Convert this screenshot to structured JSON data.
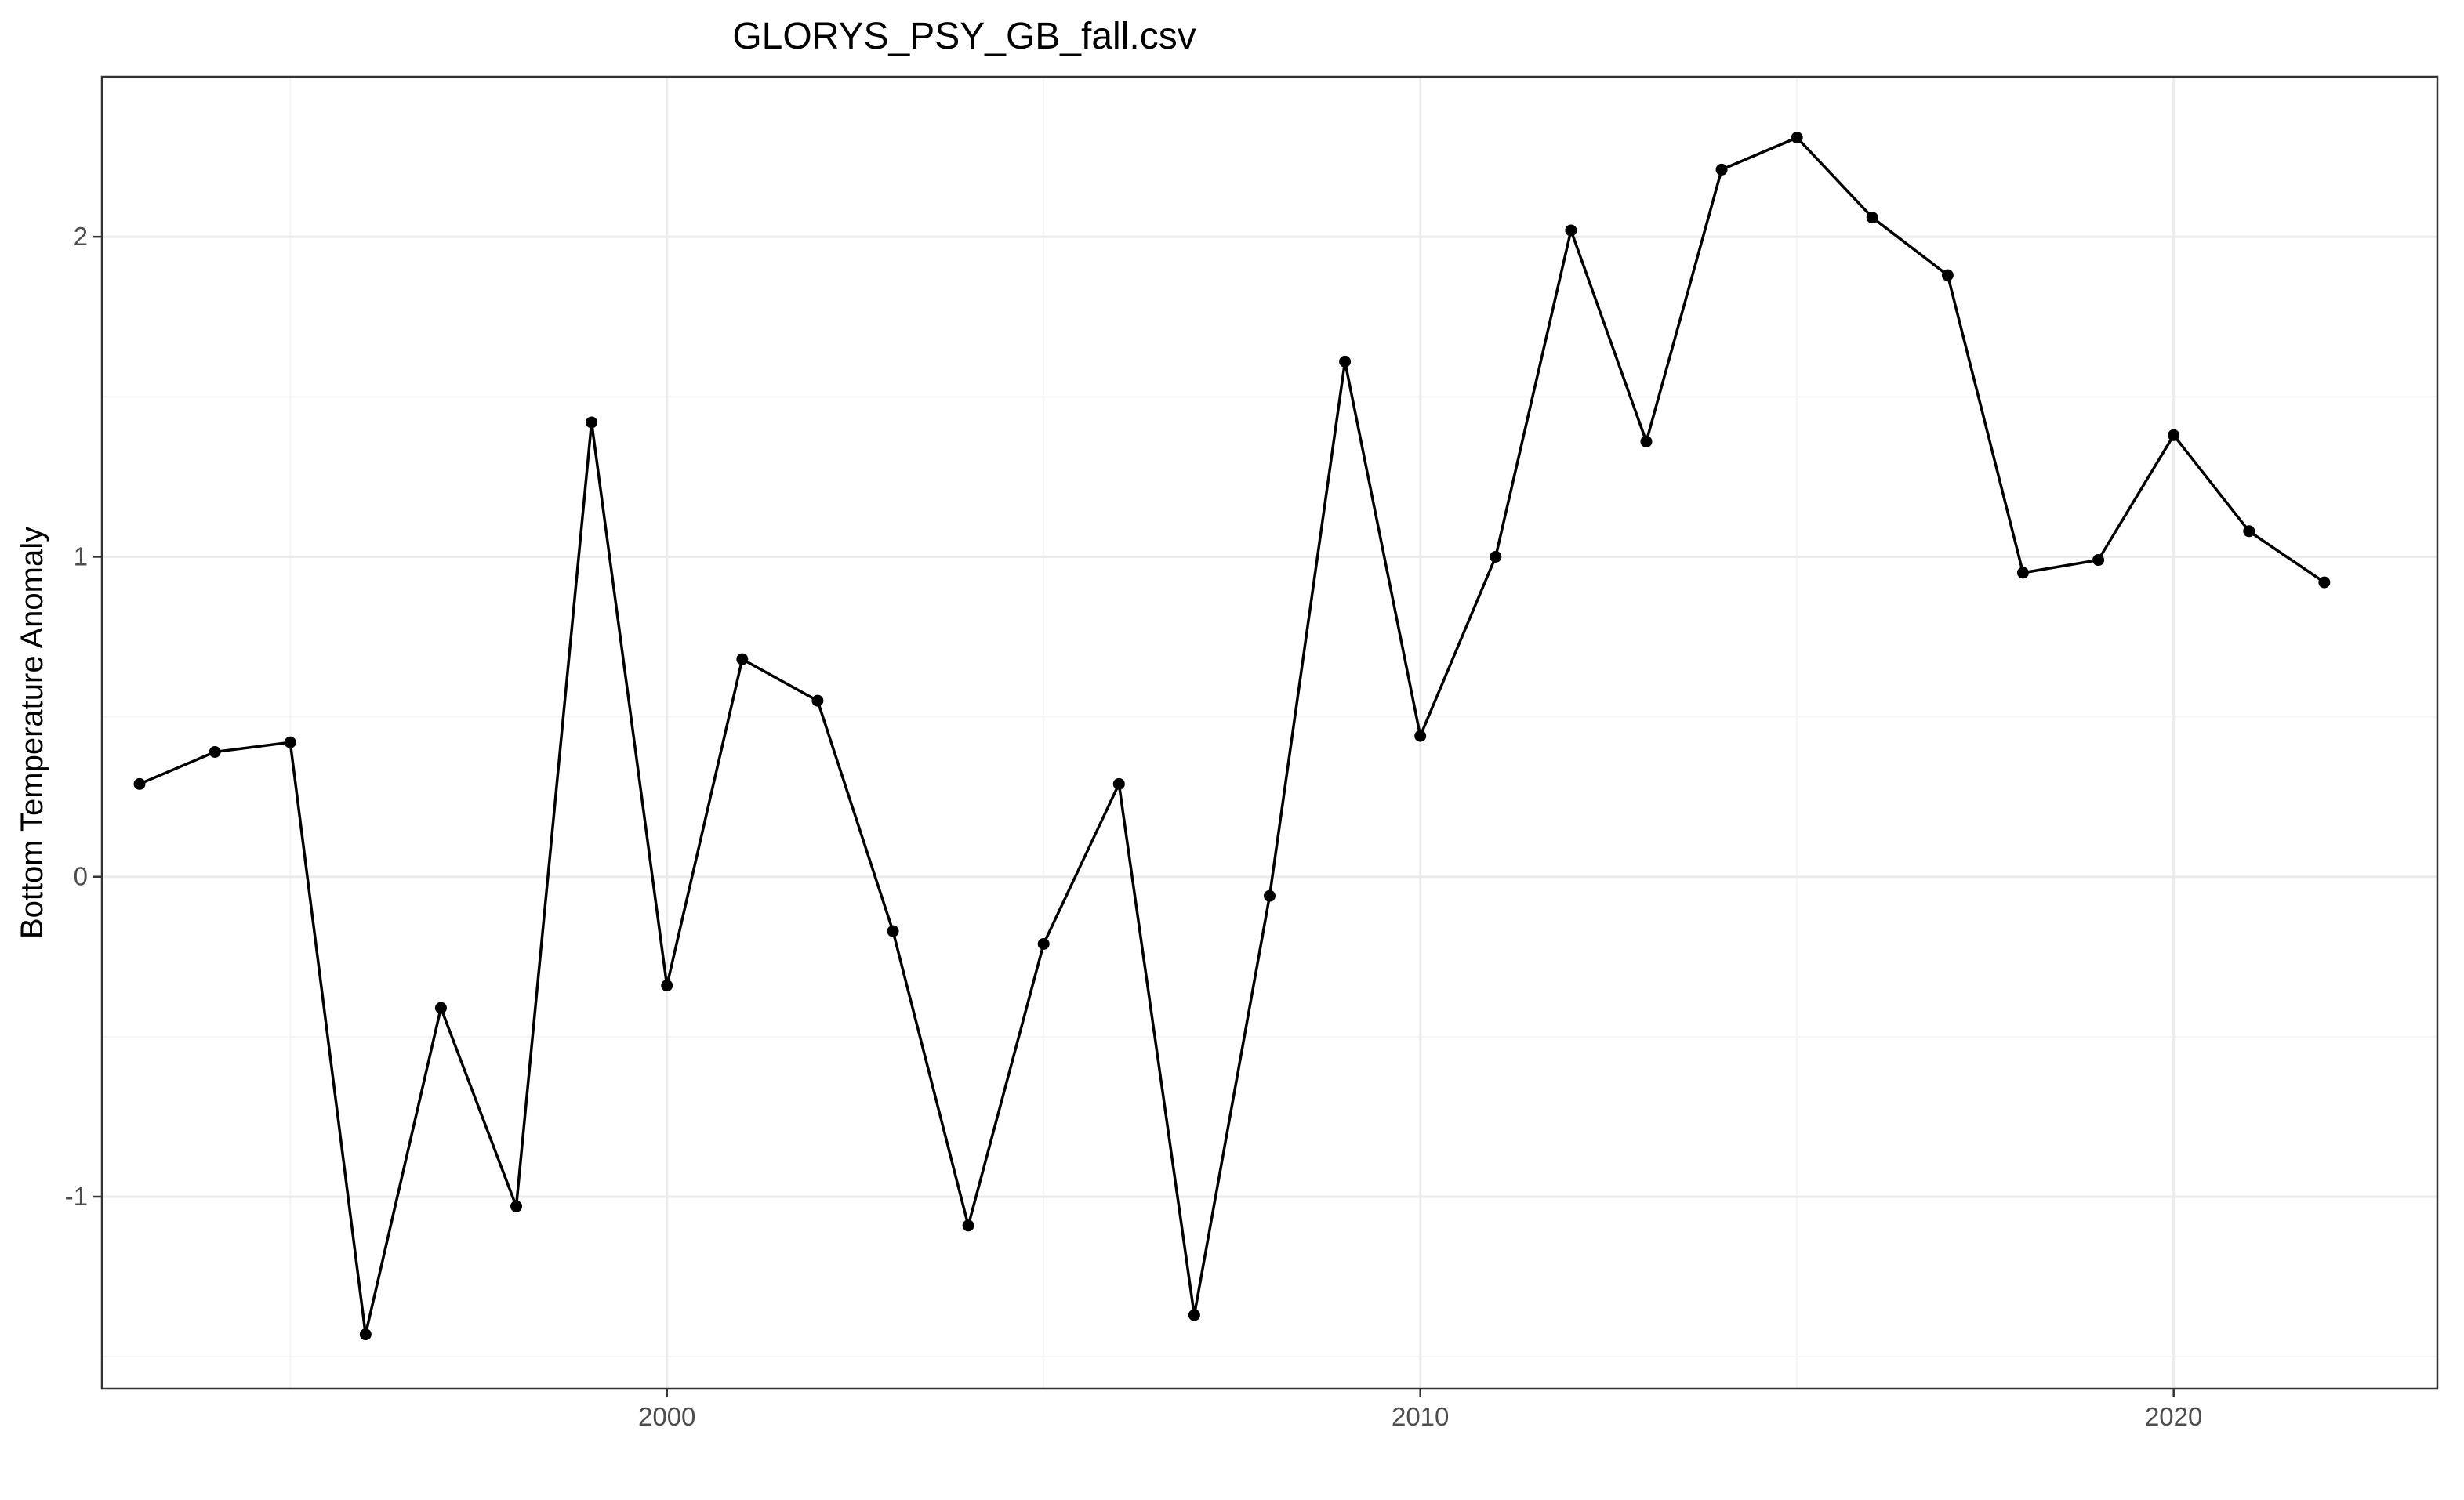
{
  "chart_data": {
    "type": "line",
    "title": "GLORYS_PSY_GB_fall.csv",
    "xlabel": "",
    "ylabel": "Bottom Temperature Anomaly",
    "xlim": [
      1992.5,
      2023.5
    ],
    "ylim": [
      -1.6,
      2.5
    ],
    "x_ticks": [
      2000,
      2010,
      2020
    ],
    "x_tick_labels": [
      "2000",
      "2010",
      "2020"
    ],
    "x_minor_ticks": [
      1995,
      2005,
      2015
    ],
    "y_ticks": [
      -1,
      0,
      1,
      2
    ],
    "y_tick_labels": [
      "-1",
      "0",
      "1",
      "2"
    ],
    "y_minor_ticks": [
      -1.5,
      -0.5,
      0.5,
      1.5
    ],
    "grid": true,
    "legend": "none",
    "series": [
      {
        "x": [
          1993,
          1994,
          1995,
          1996,
          1997,
          1998,
          1999,
          2000,
          2001,
          2002,
          2003,
          2004,
          2005,
          2006,
          2007,
          2008,
          2009,
          2010,
          2011,
          2012,
          2013,
          2014,
          2015,
          2016,
          2017,
          2018,
          2019,
          2020,
          2021,
          2022
        ],
        "values": [
          0.29,
          0.39,
          0.42,
          -1.43,
          -0.41,
          -1.03,
          1.42,
          -0.34,
          0.68,
          0.55,
          -0.17,
          -1.09,
          -0.21,
          0.29,
          -1.37,
          -0.06,
          1.61,
          0.44,
          1.0,
          2.02,
          1.36,
          2.21,
          2.31,
          2.06,
          1.88,
          0.95,
          0.99,
          1.38,
          1.08,
          0.92
        ],
        "color": "#000000"
      }
    ]
  },
  "colors": {
    "background": "#ffffff",
    "grid_major": "#ebebeb",
    "grid_minor": "#f5f5f5",
    "panel_border": "#333333",
    "tick_label": "#4d4d4d",
    "line": "#000000"
  }
}
